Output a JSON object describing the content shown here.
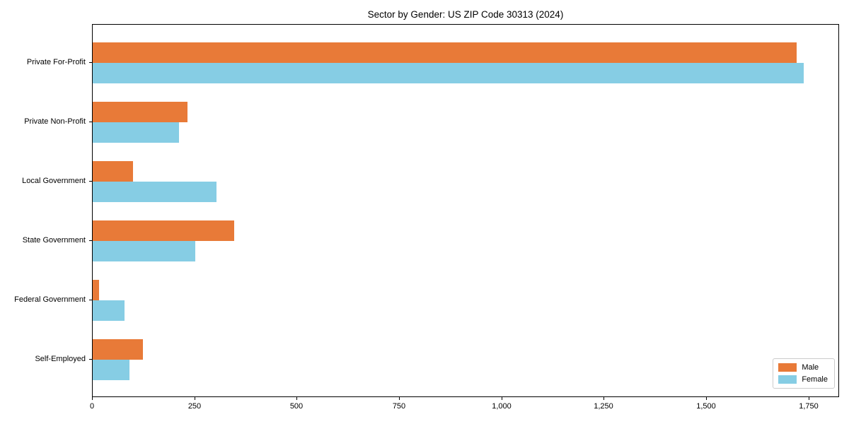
{
  "title": "Sector by Gender: US ZIP Code 30313 (2024)",
  "chart_data": {
    "type": "bar",
    "orientation": "horizontal",
    "title": "Sector by Gender: US ZIP Code 30313 (2024)",
    "categories": [
      "Private For-Profit",
      "Private Non-Profit",
      "Local Government",
      "State Government",
      "Federal Government",
      "Self-Employed"
    ],
    "series": [
      {
        "name": "Male",
        "color": "#e87a38",
        "values": [
          1720,
          232,
          98,
          345,
          15,
          122
        ]
      },
      {
        "name": "Female",
        "color": "#86cde4",
        "values": [
          1737,
          210,
          303,
          250,
          77,
          90
        ]
      }
    ],
    "xlabel": "",
    "ylabel": "",
    "xlim": [
      0,
      1825
    ],
    "x_ticks": [
      0,
      250,
      500,
      750,
      1000,
      1250,
      1500,
      1750
    ],
    "x_tick_labels": [
      "0",
      "250",
      "500",
      "750",
      "1,000",
      "1,250",
      "1,500",
      "1,750"
    ],
    "grid": false,
    "legend": {
      "position": "lower right",
      "entries": [
        {
          "label": "Male",
          "color": "#e87a38"
        },
        {
          "label": "Female",
          "color": "#86cde4"
        }
      ]
    }
  }
}
